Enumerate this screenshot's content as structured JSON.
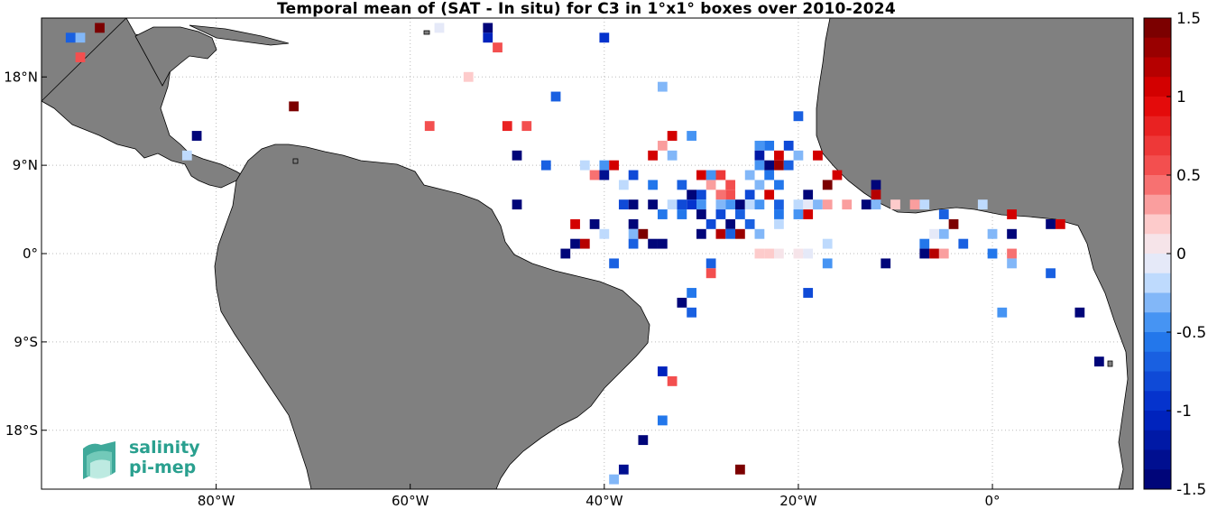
{
  "title": "Temporal mean of (SAT - In situ) for C3 in 1°x1° boxes over 2010-2024",
  "x_ticks": [
    "80°W",
    "60°W",
    "40°W",
    "20°W",
    "0°"
  ],
  "y_ticks": [
    "18°N",
    "9°N",
    "0°",
    "9°S",
    "18°S"
  ],
  "colorbar": {
    "ticks": [
      "1.5",
      "1",
      "0.5",
      "0",
      "-0.5",
      "-1",
      "-1.5"
    ],
    "range": [
      -1.5,
      1.5
    ]
  },
  "colors": {
    "land": "#808080",
    "ocean": "#ffffff",
    "positive": "#cc0000",
    "negative": "#0000aa"
  },
  "logo": {
    "line1": "salinity",
    "line2": "pi-mep"
  },
  "chart_data": {
    "type": "heatmap",
    "title": "Temporal mean of (SAT - In situ) for C3 in 1°x1° boxes over 2010-2024",
    "x_range_lon": [
      -98,
      14.5
    ],
    "y_range_lat": [
      -24,
      24
    ],
    "grid": true,
    "cells": [
      {
        "lon": -95,
        "lat": 22,
        "v": -0.7
      },
      {
        "lon": -94,
        "lat": 22,
        "v": -0.3
      },
      {
        "lon": -92,
        "lat": 23,
        "v": 1.5
      },
      {
        "lon": -94,
        "lat": 20,
        "v": 0.5
      },
      {
        "lon": -57,
        "lat": 23,
        "v": -0.1
      },
      {
        "lon": -52,
        "lat": 23,
        "v": -1.5
      },
      {
        "lon": -52,
        "lat": 22,
        "v": -1.1
      },
      {
        "lon": -51,
        "lat": 21,
        "v": 0.5
      },
      {
        "lon": -40,
        "lat": 22,
        "v": -0.9
      },
      {
        "lon": -54,
        "lat": 18,
        "v": 0.15
      },
      {
        "lon": -45,
        "lat": 16,
        "v": -0.7
      },
      {
        "lon": -34,
        "lat": 17,
        "v": -0.3
      },
      {
        "lon": -72,
        "lat": 15,
        "v": 1.5
      },
      {
        "lon": -58,
        "lat": 13,
        "v": 0.6
      },
      {
        "lon": -50,
        "lat": 13,
        "v": 0.8
      },
      {
        "lon": -48,
        "lat": 13,
        "v": 0.6
      },
      {
        "lon": -33,
        "lat": 12,
        "v": 1.1
      },
      {
        "lon": -31,
        "lat": 12,
        "v": -0.4
      },
      {
        "lon": -20,
        "lat": 14,
        "v": -0.7
      },
      {
        "lon": -82,
        "lat": 12,
        "v": -1.4
      },
      {
        "lon": -83,
        "lat": 10,
        "v": -0.2
      },
      {
        "lon": -34,
        "lat": 11,
        "v": 0.3
      },
      {
        "lon": -24,
        "lat": 11,
        "v": -0.5
      },
      {
        "lon": -23,
        "lat": 11,
        "v": -0.6
      },
      {
        "lon": -21,
        "lat": 11,
        "v": -0.8
      },
      {
        "lon": -49,
        "lat": 10,
        "v": -1.4
      },
      {
        "lon": -35,
        "lat": 10,
        "v": 1.0
      },
      {
        "lon": -33,
        "lat": 10,
        "v": -0.3
      },
      {
        "lon": -24,
        "lat": 10,
        "v": -1.2
      },
      {
        "lon": -22,
        "lat": 10,
        "v": 1.0
      },
      {
        "lon": -20,
        "lat": 10,
        "v": -0.3
      },
      {
        "lon": -18,
        "lat": 10,
        "v": 1.0
      },
      {
        "lon": -46,
        "lat": 9,
        "v": -0.7
      },
      {
        "lon": -42,
        "lat": 9,
        "v": -0.2
      },
      {
        "lon": -40,
        "lat": 9,
        "v": -0.4
      },
      {
        "lon": -39,
        "lat": 9,
        "v": 1.0
      },
      {
        "lon": -24,
        "lat": 9,
        "v": -0.5
      },
      {
        "lon": -23,
        "lat": 9,
        "v": -1.4
      },
      {
        "lon": -22,
        "lat": 9,
        "v": 1.3
      },
      {
        "lon": -21,
        "lat": 9,
        "v": -0.7
      },
      {
        "lon": -41,
        "lat": 8,
        "v": 0.4
      },
      {
        "lon": -40,
        "lat": 8,
        "v": -1.3
      },
      {
        "lon": -37,
        "lat": 8,
        "v": -0.8
      },
      {
        "lon": -30,
        "lat": 8,
        "v": 1.0
      },
      {
        "lon": -29,
        "lat": 8,
        "v": -0.5
      },
      {
        "lon": -28,
        "lat": 8,
        "v": 0.7
      },
      {
        "lon": -25,
        "lat": 8,
        "v": -0.3
      },
      {
        "lon": -23,
        "lat": 8,
        "v": -0.6
      },
      {
        "lon": -16,
        "lat": 8,
        "v": 1.0
      },
      {
        "lon": -38,
        "lat": 7,
        "v": -0.2
      },
      {
        "lon": -35,
        "lat": 7,
        "v": -0.6
      },
      {
        "lon": -32,
        "lat": 7,
        "v": -0.7
      },
      {
        "lon": -29,
        "lat": 7,
        "v": 0.3
      },
      {
        "lon": -27,
        "lat": 7,
        "v": 0.6
      },
      {
        "lon": -24,
        "lat": 7,
        "v": -0.3
      },
      {
        "lon": -22,
        "lat": 7,
        "v": -0.6
      },
      {
        "lon": -17,
        "lat": 7,
        "v": 1.4
      },
      {
        "lon": -12,
        "lat": 7,
        "v": -1.4
      },
      {
        "lon": -31,
        "lat": 6,
        "v": -1.4
      },
      {
        "lon": -30,
        "lat": 6,
        "v": -0.8
      },
      {
        "lon": -28,
        "lat": 6,
        "v": 0.4
      },
      {
        "lon": -27,
        "lat": 6,
        "v": 0.6
      },
      {
        "lon": -25,
        "lat": 6,
        "v": -0.8
      },
      {
        "lon": -23,
        "lat": 6,
        "v": 1.0
      },
      {
        "lon": -19,
        "lat": 6,
        "v": -1.4
      },
      {
        "lon": -12,
        "lat": 6,
        "v": 1.2
      },
      {
        "lon": -49,
        "lat": 5,
        "v": -1.4
      },
      {
        "lon": -38,
        "lat": 5,
        "v": -0.8
      },
      {
        "lon": -37,
        "lat": 5,
        "v": -1.4
      },
      {
        "lon": -35,
        "lat": 5,
        "v": -1.4
      },
      {
        "lon": -33,
        "lat": 5,
        "v": -0.2
      },
      {
        "lon": -32,
        "lat": 5,
        "v": -0.8
      },
      {
        "lon": -31,
        "lat": 5,
        "v": -0.9
      },
      {
        "lon": -30,
        "lat": 5,
        "v": -0.5
      },
      {
        "lon": -28,
        "lat": 5,
        "v": -0.3
      },
      {
        "lon": -27,
        "lat": 5,
        "v": -0.4
      },
      {
        "lon": -26,
        "lat": 5,
        "v": -1.4
      },
      {
        "lon": -25,
        "lat": 5,
        "v": -0.2
      },
      {
        "lon": -24,
        "lat": 5,
        "v": -0.5
      },
      {
        "lon": -22,
        "lat": 5,
        "v": -0.7
      },
      {
        "lon": -20,
        "lat": 5,
        "v": -0.2
      },
      {
        "lon": -19,
        "lat": 5,
        "v": -0.1
      },
      {
        "lon": -18,
        "lat": 5,
        "v": -0.3
      },
      {
        "lon": -17,
        "lat": 5,
        "v": 0.3
      },
      {
        "lon": -15,
        "lat": 5,
        "v": 0.3
      },
      {
        "lon": -13,
        "lat": 5,
        "v": -1.4
      },
      {
        "lon": -12,
        "lat": 5,
        "v": -0.3
      },
      {
        "lon": -10,
        "lat": 5,
        "v": 0.2
      },
      {
        "lon": -8,
        "lat": 5,
        "v": 0.3
      },
      {
        "lon": -7,
        "lat": 5,
        "v": -0.2
      },
      {
        "lon": -1,
        "lat": 5,
        "v": -0.2
      },
      {
        "lon": -34,
        "lat": 4,
        "v": -0.6
      },
      {
        "lon": -32,
        "lat": 4,
        "v": -0.6
      },
      {
        "lon": -30,
        "lat": 4,
        "v": -1.4
      },
      {
        "lon": -28,
        "lat": 4,
        "v": -0.8
      },
      {
        "lon": -26,
        "lat": 4,
        "v": -0.7
      },
      {
        "lon": -22,
        "lat": 4,
        "v": -0.6
      },
      {
        "lon": -20,
        "lat": 4,
        "v": -0.4
      },
      {
        "lon": -19,
        "lat": 4,
        "v": 1.0
      },
      {
        "lon": -5,
        "lat": 4,
        "v": -0.7
      },
      {
        "lon": 2,
        "lat": 4,
        "v": 1.0
      },
      {
        "lon": -43,
        "lat": 3,
        "v": 1.0
      },
      {
        "lon": -41,
        "lat": 3,
        "v": -1.4
      },
      {
        "lon": -37,
        "lat": 3,
        "v": -1.4
      },
      {
        "lon": -29,
        "lat": 3,
        "v": -0.8
      },
      {
        "lon": -27,
        "lat": 3,
        "v": -1.4
      },
      {
        "lon": -25,
        "lat": 3,
        "v": -0.7
      },
      {
        "lon": -22,
        "lat": 3,
        "v": -0.2
      },
      {
        "lon": -4,
        "lat": 3,
        "v": 1.4
      },
      {
        "lon": 6,
        "lat": 3,
        "v": -1.4
      },
      {
        "lon": 7,
        "lat": 3,
        "v": 1.0
      },
      {
        "lon": -40,
        "lat": 2,
        "v": -0.2
      },
      {
        "lon": -37,
        "lat": 2,
        "v": -0.3
      },
      {
        "lon": -36,
        "lat": 2,
        "v": 1.4
      },
      {
        "lon": -30,
        "lat": 2,
        "v": -1.4
      },
      {
        "lon": -28,
        "lat": 2,
        "v": 1.2
      },
      {
        "lon": -27,
        "lat": 2,
        "v": -0.7
      },
      {
        "lon": -26,
        "lat": 2,
        "v": 1.3
      },
      {
        "lon": -24,
        "lat": 2,
        "v": -0.3
      },
      {
        "lon": -5,
        "lat": 2,
        "v": -0.3
      },
      {
        "lon": -6,
        "lat": 2,
        "v": -0.1
      },
      {
        "lon": 0,
        "lat": 2,
        "v": -0.3
      },
      {
        "lon": 2,
        "lat": 2,
        "v": -1.4
      },
      {
        "lon": -43,
        "lat": 1,
        "v": -1.4
      },
      {
        "lon": -42,
        "lat": 1,
        "v": 1.2
      },
      {
        "lon": -37,
        "lat": 1,
        "v": -0.7
      },
      {
        "lon": -35,
        "lat": 1,
        "v": -1.4
      },
      {
        "lon": -34,
        "lat": 1,
        "v": -1.4
      },
      {
        "lon": -17,
        "lat": 1,
        "v": -0.2
      },
      {
        "lon": -7,
        "lat": 1,
        "v": -0.6
      },
      {
        "lon": -3,
        "lat": 1,
        "v": -0.7
      },
      {
        "lon": -44,
        "lat": 0,
        "v": -1.4
      },
      {
        "lon": -24,
        "lat": 0,
        "v": 0.2
      },
      {
        "lon": -23,
        "lat": 0,
        "v": 0.15
      },
      {
        "lon": -22,
        "lat": 0,
        "v": 0.1
      },
      {
        "lon": -20,
        "lat": 0,
        "v": 0.1
      },
      {
        "lon": -19,
        "lat": 0,
        "v": -0.1
      },
      {
        "lon": -7,
        "lat": 0,
        "v": -1.4
      },
      {
        "lon": -6,
        "lat": 0,
        "v": 1.2
      },
      {
        "lon": -5,
        "lat": 0,
        "v": 0.3
      },
      {
        "lon": 0,
        "lat": 0,
        "v": -0.6
      },
      {
        "lon": 2,
        "lat": 0,
        "v": 0.4
      },
      {
        "lon": -39,
        "lat": -1,
        "v": -0.7
      },
      {
        "lon": -29,
        "lat": -1,
        "v": -0.7
      },
      {
        "lon": -17,
        "lat": -1,
        "v": -0.4
      },
      {
        "lon": -11,
        "lat": -1,
        "v": -1.4
      },
      {
        "lon": 2,
        "lat": -1,
        "v": -0.3
      },
      {
        "lon": -29,
        "lat": -2,
        "v": 0.6
      },
      {
        "lon": 6,
        "lat": -2,
        "v": -0.7
      },
      {
        "lon": -31,
        "lat": -4,
        "v": -0.6
      },
      {
        "lon": -19,
        "lat": -4,
        "v": -0.8
      },
      {
        "lon": -32,
        "lat": -5,
        "v": -1.4
      },
      {
        "lon": -31,
        "lat": -6,
        "v": -0.7
      },
      {
        "lon": 1,
        "lat": -6,
        "v": -0.5
      },
      {
        "lon": 9,
        "lat": -6,
        "v": -1.4
      },
      {
        "lon": -34,
        "lat": -12,
        "v": -1.1
      },
      {
        "lon": -33,
        "lat": -13,
        "v": 0.6
      },
      {
        "lon": 11,
        "lat": -11,
        "v": -1.4
      },
      {
        "lon": -34,
        "lat": -17,
        "v": -0.6
      },
      {
        "lon": -36,
        "lat": -19,
        "v": -1.4
      },
      {
        "lon": -38,
        "lat": -22,
        "v": -1.3
      },
      {
        "lon": -39,
        "lat": -23,
        "v": -0.3
      },
      {
        "lon": -26,
        "lat": -22,
        "v": 1.5
      }
    ]
  }
}
